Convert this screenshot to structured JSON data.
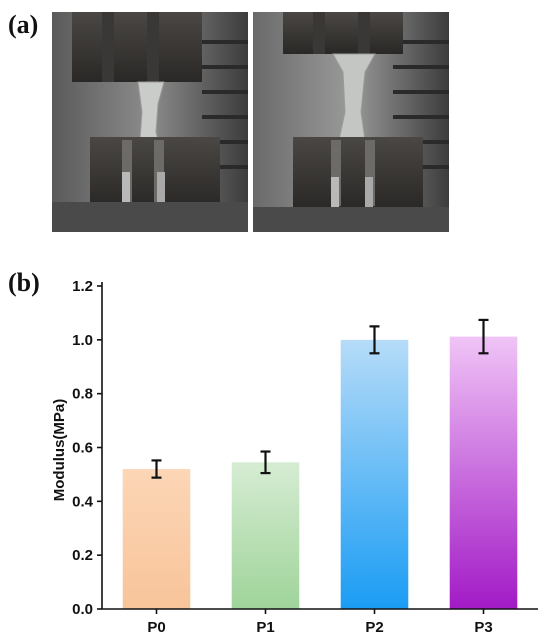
{
  "panels": {
    "a": "(a)",
    "b": "(b)"
  },
  "photos": [
    {
      "name": "specimen-photo-before",
      "icon": "tensile-test-grip-photo"
    },
    {
      "name": "specimen-photo-after",
      "icon": "tensile-test-grip-photo"
    }
  ],
  "chart_data": {
    "type": "bar",
    "categories": [
      "P0",
      "P1",
      "P2",
      "P3"
    ],
    "values": [
      0.52,
      0.545,
      1.0,
      1.012
    ],
    "errors": [
      0.032,
      0.04,
      0.05,
      0.062
    ],
    "title": "",
    "xlabel": "",
    "ylabel": "Modulus(MPa)",
    "ylim": [
      0,
      1.2
    ],
    "yticks": [
      "0.0",
      "0.2",
      "0.4",
      "0.6",
      "0.8",
      "1.0",
      "1.2"
    ],
    "grid": false,
    "colors": [
      {
        "top": "#fcd6b6",
        "bottom": "#f8c49a"
      },
      {
        "top": "#d6ecd3",
        "bottom": "#9fd49a"
      },
      {
        "top": "#b6dcf8",
        "bottom": "#1a9cf4"
      },
      {
        "top": "#f0c4f6",
        "bottom": "#a21ac6"
      }
    ]
  }
}
